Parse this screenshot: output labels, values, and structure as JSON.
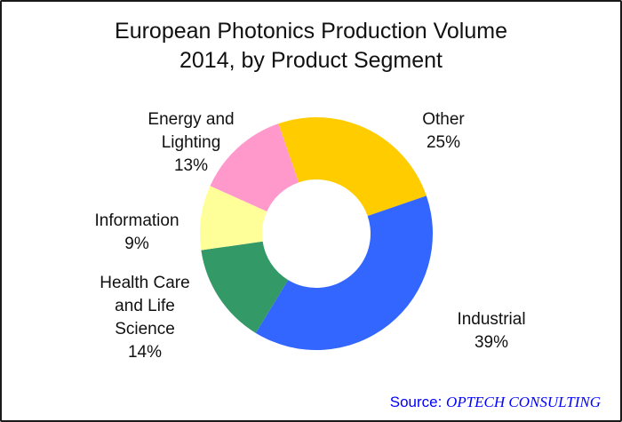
{
  "title": "European Photonics Production Volume\n2014, by Product Segment",
  "source": {
    "prefix": "Source: ",
    "name": "OPTECH CONSULTING",
    "color": "#0000FF"
  },
  "chart_data": {
    "type": "pie",
    "subtype": "donut",
    "title": "European Photonics Production Volume 2014, by Product Segment",
    "unit": "percent",
    "legend": "none",
    "start_angle_deg": -19,
    "clockwise": true,
    "inner_radius_ratio": 0.465,
    "segments": [
      {
        "id": "other",
        "label": "Other",
        "value": 25,
        "color": "#FFCC00",
        "label_text": "Other\n25%"
      },
      {
        "id": "industrial",
        "label": "Industrial",
        "value": 39,
        "color": "#3366FF",
        "label_text": "Industrial\n39%"
      },
      {
        "id": "health-care-and-life-science",
        "label": "Health Care and Life Science",
        "value": 14,
        "color": "#339966",
        "label_text": "Health Care\nand Life\nScience\n14%"
      },
      {
        "id": "information",
        "label": "Information",
        "value": 9,
        "color": "#FFFF99",
        "label_text": "Information\n9%"
      },
      {
        "id": "energy-and-lighting",
        "label": "Energy and Lighting",
        "value": 13,
        "color": "#FF99CC",
        "label_text": "Energy and\nLighting\n13%"
      }
    ]
  }
}
